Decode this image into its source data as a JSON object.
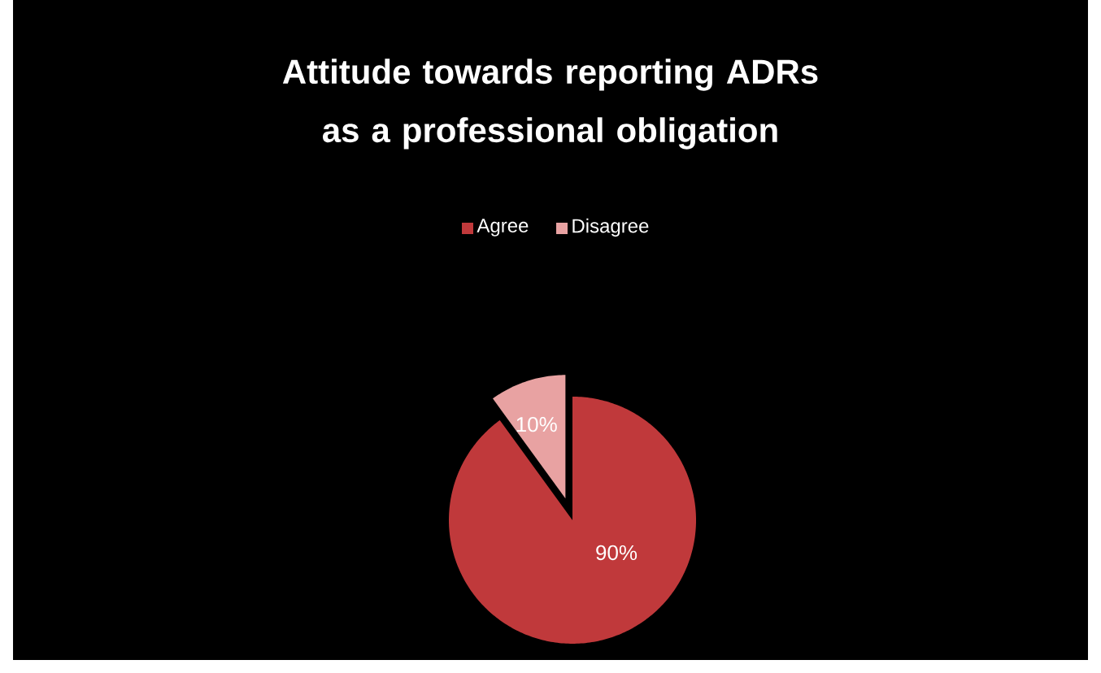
{
  "chart_data": {
    "type": "pie",
    "title": "Attitude towards reporting ADRs as a professional obligation",
    "categories": [
      "Agree",
      "Disagree"
    ],
    "values": [
      90,
      10
    ],
    "colors": [
      "#c0393b",
      "#e8a2a2"
    ],
    "value_labels": [
      "90%",
      "10%"
    ],
    "legend": "top"
  }
}
